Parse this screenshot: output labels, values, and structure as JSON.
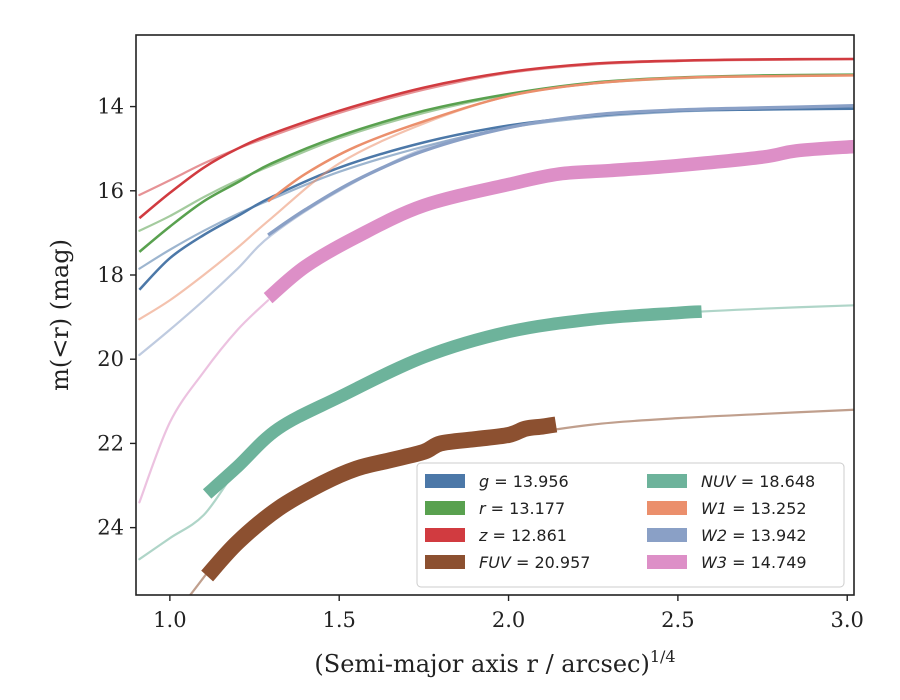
{
  "chart_data": {
    "type": "line",
    "xlabel": "(Semi-major axis r / arcsec)",
    "xlabel_sup": "1/4",
    "ylabel": "m(<r) (mag)",
    "xlim": [
      0.9,
      3.02
    ],
    "ylim": [
      25.6,
      12.3
    ],
    "y_inverted": true,
    "x_ticks": [
      1.0,
      1.5,
      2.0,
      2.5,
      3.0
    ],
    "x_tick_labels": [
      "1.0",
      "1.5",
      "2.0",
      "2.5",
      "3.0"
    ],
    "y_ticks": [
      14,
      16,
      18,
      20,
      22,
      24
    ],
    "y_tick_labels": [
      "14",
      "16",
      "18",
      "20",
      "22",
      "24"
    ],
    "grid": false,
    "legend_position": "lower-right",
    "series": [
      {
        "name": "g = 13.956",
        "label_var": "g",
        "label_val": "13.956",
        "color": "#4c78a8",
        "model": [
          [
            0.91,
            17.85
          ],
          [
            1.0,
            17.4
          ],
          [
            1.1,
            16.95
          ],
          [
            1.2,
            16.55
          ],
          [
            1.3,
            16.2
          ],
          [
            1.5,
            15.55
          ],
          [
            1.75,
            14.95
          ],
          [
            2.0,
            14.5
          ],
          [
            2.25,
            14.25
          ],
          [
            2.5,
            14.12
          ],
          [
            2.75,
            14.07
          ],
          [
            3.02,
            14.05
          ]
        ],
        "obs": [
          [
            0.91,
            18.35
          ],
          [
            1.0,
            17.6
          ],
          [
            1.1,
            17.05
          ],
          [
            1.2,
            16.6
          ],
          [
            1.3,
            16.15
          ],
          [
            1.5,
            15.45
          ],
          [
            1.75,
            14.85
          ],
          [
            2.0,
            14.45
          ],
          [
            2.25,
            14.22
          ],
          [
            2.5,
            14.1
          ],
          [
            2.75,
            14.07
          ],
          [
            3.02,
            14.05
          ]
        ],
        "obs_width": 0.06,
        "obs_start": 0.91,
        "obs_end": 3.02,
        "obs_alpha": 1.0
      },
      {
        "name": "r = 13.177",
        "label_var": "r",
        "label_val": "13.177",
        "color": "#59a14f",
        "model": [
          [
            0.91,
            16.95
          ],
          [
            1.0,
            16.6
          ],
          [
            1.1,
            16.15
          ],
          [
            1.2,
            15.75
          ],
          [
            1.3,
            15.4
          ],
          [
            1.5,
            14.75
          ],
          [
            1.75,
            14.15
          ],
          [
            2.0,
            13.72
          ],
          [
            2.25,
            13.45
          ],
          [
            2.5,
            13.33
          ],
          [
            2.75,
            13.27
          ],
          [
            3.02,
            13.24
          ]
        ],
        "obs": [
          [
            0.91,
            17.45
          ],
          [
            1.0,
            16.85
          ],
          [
            1.1,
            16.25
          ],
          [
            1.2,
            15.8
          ],
          [
            1.3,
            15.35
          ],
          [
            1.5,
            14.7
          ],
          [
            1.75,
            14.1
          ],
          [
            2.0,
            13.7
          ],
          [
            2.25,
            13.43
          ],
          [
            2.5,
            13.31
          ],
          [
            2.75,
            13.26
          ],
          [
            3.02,
            13.24
          ]
        ],
        "obs_width": 0.06,
        "obs_start": 0.91,
        "obs_end": 3.02,
        "obs_alpha": 1.0
      },
      {
        "name": "z = 12.861",
        "label_var": "z",
        "label_val": "12.861",
        "color": "#d13b40",
        "model": [
          [
            0.91,
            16.1
          ],
          [
            1.0,
            15.75
          ],
          [
            1.1,
            15.35
          ],
          [
            1.2,
            15.0
          ],
          [
            1.3,
            14.7
          ],
          [
            1.5,
            14.15
          ],
          [
            1.75,
            13.6
          ],
          [
            2.0,
            13.2
          ],
          [
            2.25,
            13.0
          ],
          [
            2.5,
            12.92
          ],
          [
            2.75,
            12.89
          ],
          [
            3.02,
            12.87
          ]
        ],
        "obs": [
          [
            0.91,
            16.65
          ],
          [
            1.0,
            16.05
          ],
          [
            1.1,
            15.45
          ],
          [
            1.2,
            15.0
          ],
          [
            1.3,
            14.65
          ],
          [
            1.5,
            14.1
          ],
          [
            1.75,
            13.55
          ],
          [
            2.0,
            13.18
          ],
          [
            2.25,
            12.98
          ],
          [
            2.5,
            12.91
          ],
          [
            2.75,
            12.88
          ],
          [
            3.02,
            12.87
          ]
        ],
        "obs_width": 0.06,
        "obs_start": 0.91,
        "obs_end": 3.02,
        "obs_alpha": 1.0
      },
      {
        "name": "FUV = 20.957",
        "label_var": "FUV",
        "label_val": "20.957",
        "color": "#8c5030",
        "model": [
          [
            1.06,
            25.6
          ],
          [
            1.2,
            24.2
          ],
          [
            1.3,
            23.7
          ],
          [
            1.5,
            22.85
          ],
          [
            1.75,
            22.25
          ],
          [
            2.0,
            21.85
          ],
          [
            2.25,
            21.55
          ],
          [
            2.5,
            21.4
          ],
          [
            2.75,
            21.3
          ],
          [
            3.02,
            21.2
          ]
        ],
        "obs": [
          [
            1.11,
            25.15
          ],
          [
            1.2,
            24.35
          ],
          [
            1.32,
            23.55
          ],
          [
            1.45,
            22.95
          ],
          [
            1.55,
            22.6
          ],
          [
            1.65,
            22.4
          ],
          [
            1.75,
            22.2
          ],
          [
            1.8,
            22.0
          ],
          [
            1.9,
            21.9
          ],
          [
            2.0,
            21.8
          ],
          [
            2.05,
            21.65
          ],
          [
            2.1,
            21.6
          ],
          [
            2.14,
            21.55
          ]
        ],
        "obs_width": 0.38,
        "obs_start": 1.11,
        "obs_end": 2.14,
        "obs_alpha": 1.0
      },
      {
        "name": "NUV = 18.648",
        "label_var": "NUV",
        "label_val": "18.648",
        "color": "#6db39b",
        "model": [
          [
            0.91,
            24.75
          ],
          [
            1.0,
            24.25
          ],
          [
            1.1,
            23.7
          ],
          [
            1.2,
            22.6
          ],
          [
            1.3,
            21.8
          ],
          [
            1.5,
            20.85
          ],
          [
            1.75,
            19.95
          ],
          [
            2.0,
            19.35
          ],
          [
            2.25,
            19.05
          ],
          [
            2.5,
            18.9
          ],
          [
            2.75,
            18.8
          ],
          [
            3.02,
            18.72
          ]
        ],
        "obs": [
          [
            1.11,
            23.2
          ],
          [
            1.2,
            22.55
          ],
          [
            1.32,
            21.65
          ],
          [
            1.5,
            20.9
          ],
          [
            1.75,
            19.95
          ],
          [
            2.0,
            19.35
          ],
          [
            2.25,
            19.05
          ],
          [
            2.5,
            18.9
          ],
          [
            2.57,
            18.87
          ]
        ],
        "obs_width": 0.3,
        "obs_start": 1.11,
        "obs_end": 2.57,
        "obs_alpha": 1.0
      },
      {
        "name": "W1 = 13.252",
        "label_var": "W1",
        "label_val": "13.252",
        "color": "#eb8f6c",
        "model": [
          [
            0.91,
            19.05
          ],
          [
            1.0,
            18.6
          ],
          [
            1.1,
            18.0
          ],
          [
            1.2,
            17.35
          ],
          [
            1.3,
            16.65
          ],
          [
            1.5,
            15.35
          ],
          [
            1.75,
            14.4
          ],
          [
            2.0,
            13.75
          ],
          [
            2.25,
            13.45
          ],
          [
            2.5,
            13.32
          ],
          [
            2.75,
            13.28
          ],
          [
            3.02,
            13.26
          ]
        ],
        "obs": [
          [
            1.29,
            16.25
          ],
          [
            1.4,
            15.6
          ],
          [
            1.55,
            14.95
          ],
          [
            1.75,
            14.35
          ],
          [
            2.0,
            13.75
          ],
          [
            2.25,
            13.45
          ],
          [
            2.5,
            13.32
          ],
          [
            2.75,
            13.28
          ],
          [
            3.02,
            13.26
          ]
        ],
        "obs_width": 0.06,
        "obs_start": 1.29,
        "obs_end": 3.02,
        "obs_alpha": 1.0
      },
      {
        "name": "W2 = 13.942",
        "label_var": "W2",
        "label_val": "13.942",
        "color": "#8aa0c6",
        "model": [
          [
            0.91,
            19.9
          ],
          [
            1.0,
            19.3
          ],
          [
            1.1,
            18.6
          ],
          [
            1.2,
            17.85
          ],
          [
            1.3,
            17.05
          ],
          [
            1.5,
            16.0
          ],
          [
            1.75,
            15.0
          ],
          [
            2.0,
            14.5
          ],
          [
            2.25,
            14.2
          ],
          [
            2.5,
            14.08
          ],
          [
            2.75,
            14.03
          ],
          [
            3.02,
            13.98
          ]
        ],
        "obs": [
          [
            1.29,
            17.05
          ],
          [
            1.4,
            16.45
          ],
          [
            1.55,
            15.75
          ],
          [
            1.75,
            15.05
          ],
          [
            2.0,
            14.5
          ],
          [
            2.25,
            14.2
          ],
          [
            2.5,
            14.08
          ],
          [
            2.75,
            14.03
          ],
          [
            3.02,
            13.98
          ]
        ],
        "obs_width": 0.08,
        "obs_start": 1.29,
        "obs_end": 3.02,
        "obs_alpha": 1.0
      },
      {
        "name": "W3 = 14.749",
        "label_var": "W3",
        "label_val": "14.749",
        "color": "#dd8fc7",
        "model": [
          [
            0.91,
            23.4
          ],
          [
            1.0,
            21.5
          ],
          [
            1.1,
            20.3
          ],
          [
            1.2,
            19.3
          ],
          [
            1.29,
            18.6
          ]
        ],
        "obs": [
          [
            1.29,
            18.55
          ],
          [
            1.4,
            17.8
          ],
          [
            1.55,
            17.1
          ],
          [
            1.75,
            16.35
          ],
          [
            2.0,
            15.85
          ],
          [
            2.15,
            15.6
          ],
          [
            2.3,
            15.52
          ],
          [
            2.5,
            15.4
          ],
          [
            2.75,
            15.2
          ],
          [
            2.85,
            15.05
          ],
          [
            3.02,
            14.95
          ]
        ],
        "obs_width": 0.32,
        "obs_start": 1.29,
        "obs_end": 3.02,
        "obs_alpha": 1.0
      }
    ]
  }
}
